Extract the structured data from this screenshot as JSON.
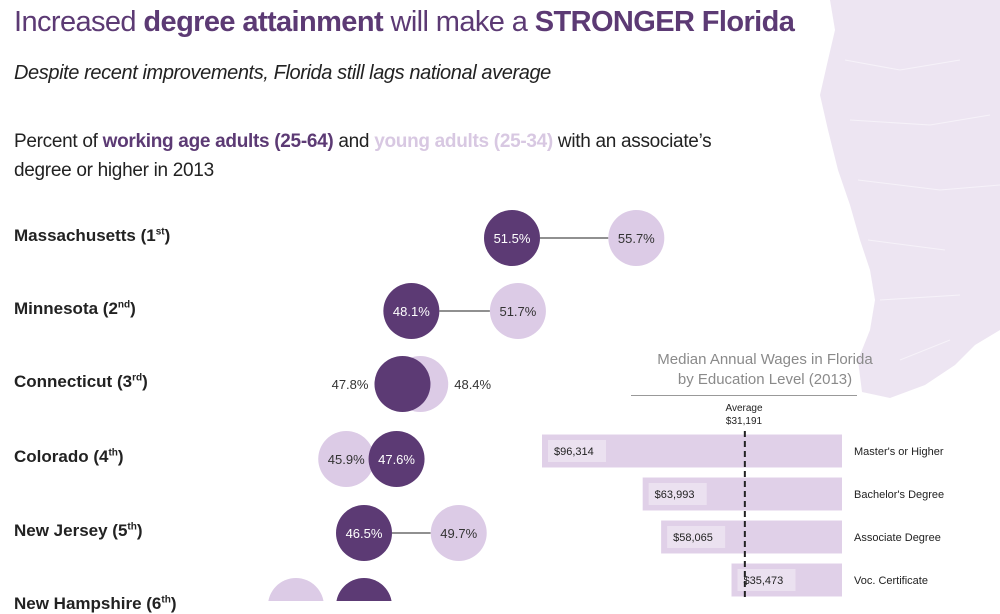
{
  "header": {
    "title_parts": [
      "Increased ",
      "degree attainment",
      " will make a ",
      "STRONGER Florida"
    ],
    "subtitle": "Despite recent improvements, Florida still lags national average",
    "intro_parts": [
      "Percent of ",
      "working age adults (25-64)",
      " and ",
      "young adults (25-34)",
      " with an associate’s degree or higher in 2013"
    ]
  },
  "colors": {
    "dark": "#5c3a74",
    "light": "#dccbe6",
    "bar": "#e0d0e8",
    "map": "#ede5f2"
  },
  "chart_data": [
    {
      "type": "dumbbell",
      "series": [
        {
          "name": "working age adults (25-64)",
          "color": "#5c3a74"
        },
        {
          "name": "young adults (25-34)",
          "color": "#dccbe6"
        }
      ],
      "rows": [
        {
          "state": "Massachusetts",
          "rank": "1",
          "suffix": "st",
          "working": 51.5,
          "young": 55.7,
          "working_label": "51.5%",
          "young_label": "55.7%"
        },
        {
          "state": "Minnesota",
          "rank": "2",
          "suffix": "nd",
          "working": 48.1,
          "young": 51.7,
          "working_label": "48.1%",
          "young_label": "51.7%"
        },
        {
          "state": "Connecticut",
          "rank": "3",
          "suffix": "rd",
          "working": 47.8,
          "young": 48.4,
          "working_label": "47.8%",
          "young_label": "48.4%"
        },
        {
          "state": "Colorado",
          "rank": "4",
          "suffix": "th",
          "working": 47.6,
          "young": 45.9,
          "working_label": "47.6%",
          "young_label": "45.9%"
        },
        {
          "state": "New Jersey",
          "rank": "5",
          "suffix": "th",
          "working": 46.5,
          "young": 49.7,
          "working_label": "46.5%",
          "young_label": "49.7%"
        },
        {
          "state": "New Hampshire",
          "rank": "6",
          "suffix": "th",
          "working": 46.5,
          "young": 44.2
        }
      ]
    },
    {
      "type": "bar",
      "title": "Median Annual Wages in Florida",
      "subtitle": "by Education Level (2013)",
      "average_label": "Average",
      "average": 31191,
      "average_value_label": "$31,191",
      "categories": [
        "Master's or Higher",
        "Bachelor's Degree",
        "Associate Degree",
        "Voc. Certificate"
      ],
      "values": [
        96314,
        63993,
        58065,
        35473
      ],
      "value_labels": [
        "$96,314",
        "$63,993",
        "$58,065",
        "$35,473"
      ]
    }
  ]
}
